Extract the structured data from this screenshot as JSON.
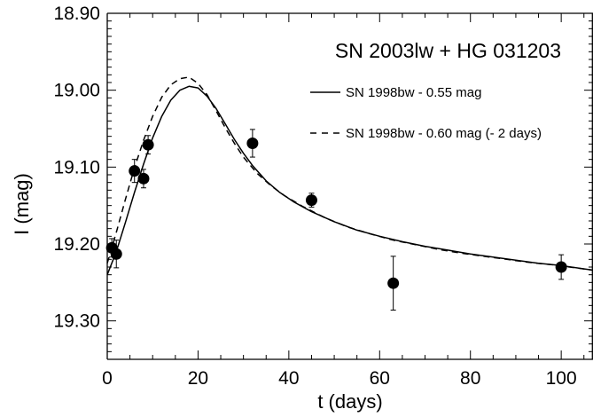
{
  "chart_data": {
    "type": "line",
    "title": "SN 2003lw + HG 031203",
    "xlabel": "t (days)",
    "ylabel": "I (mag)",
    "xlim": [
      0,
      107
    ],
    "ylim": [
      19.35,
      18.9
    ],
    "y_inverted": true,
    "x_ticks": [
      0,
      20,
      40,
      60,
      80,
      100
    ],
    "x_tick_labels": [
      "0",
      "20",
      "40",
      "60",
      "80",
      "100"
    ],
    "y_ticks": [
      18.9,
      19.0,
      19.1,
      19.2,
      19.3
    ],
    "y_tick_labels": [
      "18.90",
      "19.00",
      "19.10",
      "19.20",
      "19.30"
    ],
    "grid": false,
    "legend_placement": "top-right",
    "series": [
      {
        "name": "SN 1998bw  - 0.55 mag",
        "style": "solid",
        "x": [
          0,
          2,
          4,
          6,
          8,
          10,
          12,
          14,
          16,
          18,
          20,
          22,
          24,
          26,
          28,
          30,
          32,
          35,
          38,
          41,
          45,
          50,
          55,
          60,
          65,
          70,
          75,
          80,
          85,
          90,
          95,
          100,
          107
        ],
        "y": [
          19.24,
          19.21,
          19.172,
          19.133,
          19.096,
          19.062,
          19.034,
          19.013,
          19.0,
          18.995,
          18.997,
          19.008,
          19.024,
          19.044,
          19.064,
          19.082,
          19.098,
          19.118,
          19.133,
          19.145,
          19.158,
          19.171,
          19.182,
          19.19,
          19.197,
          19.203,
          19.208,
          19.213,
          19.217,
          19.221,
          19.225,
          19.228,
          19.234
        ]
      },
      {
        "name": "SN 1998bw  - 0.60 mag (- 2 days)",
        "style": "dashed",
        "x": [
          0,
          2,
          4,
          6,
          8,
          10,
          12,
          14,
          16,
          18,
          20,
          22,
          24,
          26,
          28,
          30,
          33,
          36,
          39,
          43,
          48,
          53,
          58,
          63,
          68,
          73,
          78,
          83,
          88,
          93,
          98,
          107
        ],
        "y": [
          19.225,
          19.185,
          19.142,
          19.101,
          19.065,
          19.034,
          19.009,
          18.993,
          18.985,
          18.983,
          18.991,
          19.006,
          19.027,
          19.049,
          19.069,
          19.087,
          19.108,
          19.124,
          19.137,
          19.151,
          19.166,
          19.178,
          19.187,
          19.195,
          19.201,
          19.207,
          19.212,
          19.216,
          19.22,
          19.224,
          19.227,
          19.234
        ]
      }
    ],
    "observations": {
      "x": [
        1,
        2,
        6,
        8,
        9,
        32,
        45,
        63,
        100
      ],
      "y": [
        19.205,
        19.213,
        19.105,
        19.115,
        19.071,
        19.069,
        19.143,
        19.251,
        19.23
      ],
      "err": [
        0.012,
        0.018,
        0.015,
        0.012,
        0.012,
        0.018,
        0.009,
        0.035,
        0.016
      ]
    }
  }
}
